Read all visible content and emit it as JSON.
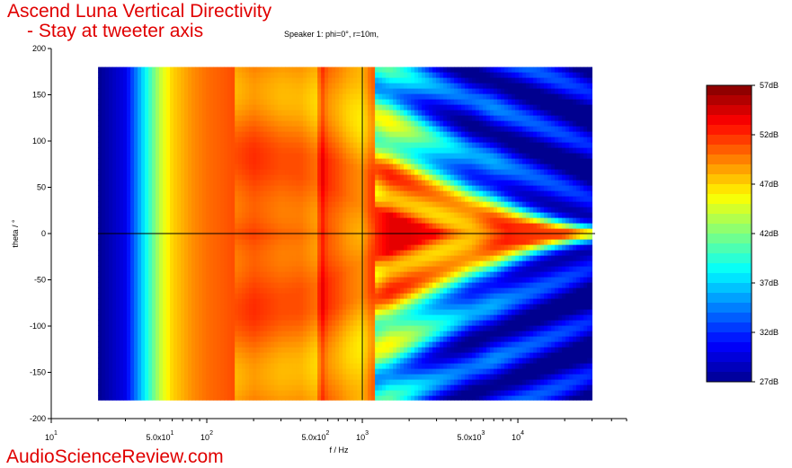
{
  "chart_data": {
    "type": "heatmap",
    "title_line1": "Ascend Luna Vertical Directivity",
    "title_line2": "- Stay at tweeter axis",
    "subtitle": "Speaker 1: phi=0°, r=10m,",
    "xlabel": "f / Hz",
    "ylabel": "theta / °",
    "x_scale": "log",
    "xlim": [
      10,
      50000
    ],
    "ylim": [
      -200,
      200
    ],
    "x_tick_labels": [
      {
        "value": 10,
        "base": "10",
        "exp": "1"
      },
      {
        "value": 50,
        "base": "5.0x10",
        "exp": "1"
      },
      {
        "value": 100,
        "base": "10",
        "exp": "2"
      },
      {
        "value": 500,
        "base": "5.0x10",
        "exp": "2"
      },
      {
        "value": 1000,
        "base": "10",
        "exp": "3"
      },
      {
        "value": 5000,
        "base": "5.0x10",
        "exp": "3"
      },
      {
        "value": 10000,
        "base": "10",
        "exp": "4"
      }
    ],
    "y_ticks": [
      200,
      150,
      100,
      50,
      0,
      -50,
      -100,
      -150,
      -200
    ],
    "data_x_range": [
      20,
      30000
    ],
    "data_y_range": [
      -180,
      180
    ],
    "colorbar": {
      "min_db": 27,
      "max_db": 57,
      "tick_labels": [
        "57dB",
        "52dB",
        "47dB",
        "42dB",
        "37dB",
        "32dB",
        "27dB"
      ],
      "tick_values": [
        57,
        52,
        47,
        42,
        37,
        32,
        27
      ],
      "colors_low_to_high": [
        "#00008f",
        "#0000ff",
        "#007fff",
        "#00ffff",
        "#7fff7f",
        "#ffff00",
        "#ff7f00",
        "#ff0000",
        "#7f0000"
      ]
    },
    "reference_lines": {
      "theta": 0,
      "frequency_hz": 1000
    },
    "level_profile_vs_frequency": {
      "freq_hz": [
        20,
        30,
        40,
        50,
        60,
        80,
        100,
        150,
        200,
        300,
        400,
        500,
        550,
        600,
        700,
        800,
        1000,
        1100,
        1500,
        2000,
        3000,
        5000,
        7000,
        10000,
        20000,
        30000
      ],
      "on_axis_db": [
        27,
        30,
        38,
        44,
        47,
        49,
        50,
        51,
        52,
        51,
        51,
        50,
        54,
        52,
        51,
        50,
        49,
        51,
        54,
        54,
        53,
        52,
        53,
        52,
        51,
        50
      ]
    }
  },
  "watermark": "AudioScienceReview.com"
}
